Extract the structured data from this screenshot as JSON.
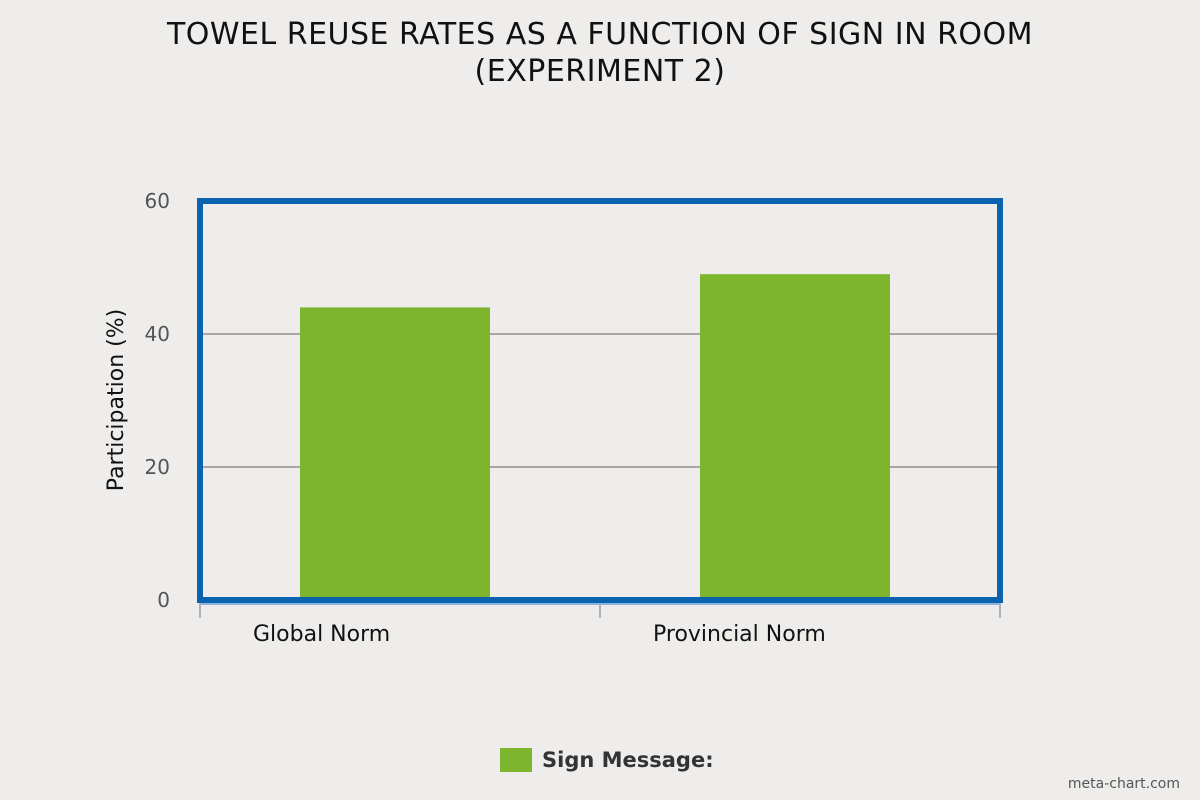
{
  "chart_data": {
    "type": "bar",
    "title": "TOWEL REUSE RATES AS A FUNCTION OF SIGN IN ROOM",
    "subtitle": "(EXPERIMENT 2)",
    "categories": [
      "Global Norm",
      "Provincial Norm"
    ],
    "series": [
      {
        "name": "Sign Message:",
        "values": [
          44,
          49
        ]
      }
    ],
    "xlabel": "",
    "ylabel": "Participation (%)",
    "ylim": [
      0,
      60
    ],
    "yticks": [
      0,
      20,
      40,
      60
    ],
    "grid": true,
    "legend": "bottom-center",
    "colors": {
      "bar": "#7db52f",
      "frame": "#0b63b0",
      "grid": "#aaa6a3"
    }
  },
  "watermark": "meta-chart.com"
}
